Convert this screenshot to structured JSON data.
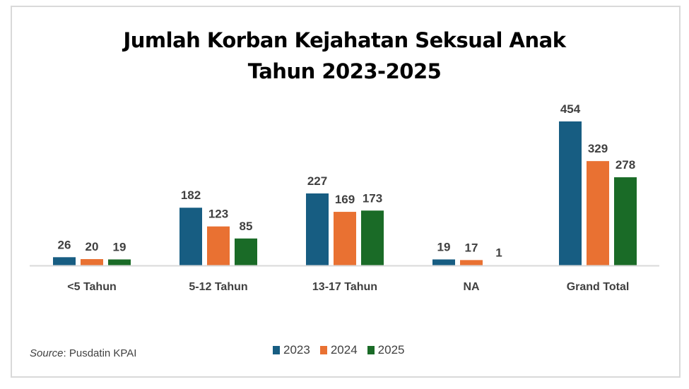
{
  "chart_data": {
    "type": "bar",
    "title": [
      "Jumlah Korban Kejahatan Seksual Anak",
      "Tahun 2023-2025"
    ],
    "categories": [
      "<5 Tahun",
      "5-12 Tahun",
      "13-17 Tahun",
      "NA",
      "Grand Total"
    ],
    "series": [
      {
        "name": "2023",
        "color": "#175d82",
        "values": [
          26,
          182,
          227,
          19,
          454
        ]
      },
      {
        "name": "2024",
        "color": "#e97132",
        "values": [
          20,
          123,
          169,
          17,
          329
        ]
      },
      {
        "name": "2025",
        "color": "#1a6b27",
        "values": [
          19,
          85,
          173,
          1,
          278
        ]
      }
    ],
    "xlabel": "",
    "ylabel": "",
    "ylim": [
      0,
      454
    ],
    "grid": false,
    "legend": "bottom",
    "data_labels": true
  },
  "source": {
    "label": "Source",
    "text": ": Pusdatin KPAI"
  }
}
